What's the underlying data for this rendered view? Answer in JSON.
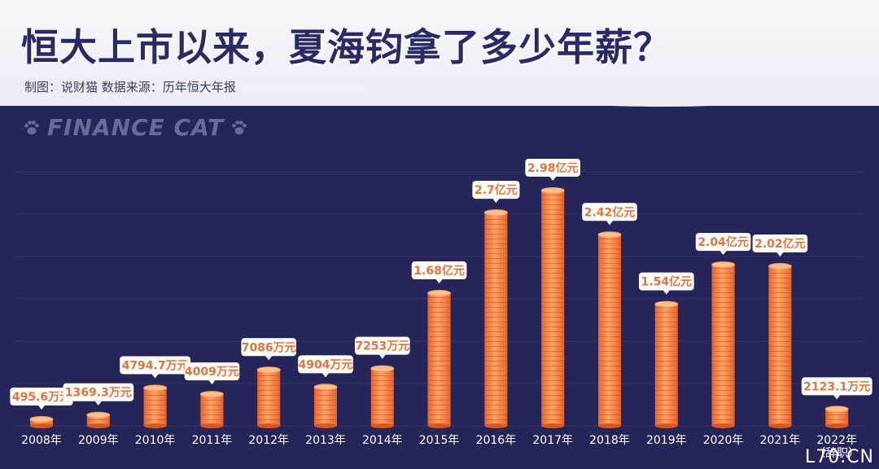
{
  "header": {
    "title": "恒大上市以来，夏海钧拿了多少年薪？",
    "subtitle": "制图：说财猫   数据来源：历年恒大年报",
    "watermark": "FINANCE CAT"
  },
  "site_mark": "L70.CN",
  "colors": {
    "background": "#25255a",
    "bar": "#f07a3a",
    "bar_light": "#ffb27a",
    "label_bg": "#ffffff",
    "label_text": "#e0743a"
  },
  "chart_data": {
    "type": "bar",
    "categories": [
      "2008年",
      "2009年",
      "2010年",
      "2011年",
      "2012年",
      "2013年",
      "2014年",
      "2015年",
      "2016年",
      "2017年",
      "2018年",
      "2019年",
      "2020年",
      "2021年",
      "2022年\n（辞职）"
    ],
    "values": [
      495.6,
      1369.3,
      4794.7,
      4009,
      7086,
      4904,
      7253,
      16800,
      27000,
      29800,
      24200,
      15400,
      20400,
      20200,
      2123.1
    ],
    "value_unit": "万元",
    "data_labels": [
      "495.6万元",
      "1369.3万元",
      "4794.7万元",
      "4009万元",
      "7086万元",
      "4904万元",
      "7253万元",
      "1.68亿元",
      "2.7亿元",
      "2.98亿元",
      "2.42亿元",
      "1.54亿元",
      "2.04亿元",
      "2.02亿元",
      "2123.1万元"
    ],
    "ylim": [
      0,
      30000
    ],
    "grid": true,
    "legend": "none"
  }
}
